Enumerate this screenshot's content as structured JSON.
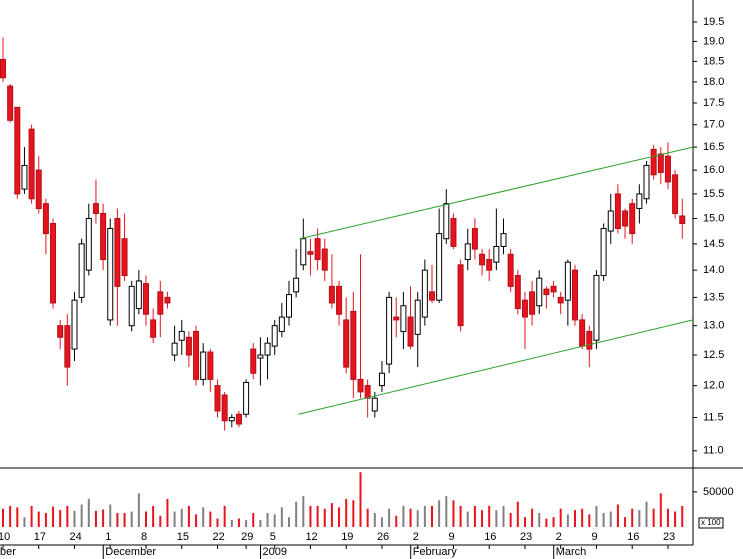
{
  "chart_data": {
    "type": "candlestick",
    "categories": [
      "10",
      null,
      null,
      null,
      null,
      "17",
      null,
      null,
      null,
      null,
      "24",
      null,
      null,
      null,
      null,
      "1",
      null,
      null,
      null,
      null,
      "8",
      null,
      null,
      null,
      null,
      "15",
      null,
      null,
      null,
      null,
      "22",
      null,
      null,
      null,
      "29",
      null,
      null,
      null,
      "5",
      null,
      null,
      null,
      null,
      "12",
      null,
      null,
      null,
      null,
      "19",
      null,
      null,
      null,
      null,
      "26",
      null,
      null,
      null,
      null,
      "2",
      null,
      null,
      null,
      null,
      "9",
      null,
      null,
      null,
      null,
      "16",
      null,
      null,
      null,
      null,
      "23",
      null,
      null,
      null,
      null,
      "2",
      null,
      null,
      null,
      null,
      "9",
      null,
      null,
      null,
      null,
      "16",
      null,
      null,
      null,
      null,
      "23",
      null,
      null
    ],
    "month_labels": [
      "ber",
      null,
      null,
      null,
      null,
      null,
      null,
      null,
      null,
      null,
      null,
      null,
      null,
      null,
      null,
      "December",
      null,
      null,
      null,
      null,
      null,
      null,
      null,
      null,
      null,
      null,
      null,
      null,
      null,
      null,
      null,
      null,
      null,
      null,
      null,
      null,
      null,
      "2009",
      null,
      null,
      null,
      null,
      null,
      null,
      null,
      null,
      null,
      null,
      null,
      null,
      null,
      null,
      null,
      null,
      null,
      null,
      null,
      null,
      "February",
      null,
      null,
      null,
      null,
      null,
      null,
      null,
      null,
      null,
      null,
      null,
      null,
      null,
      null,
      null,
      null,
      null,
      null,
      null,
      "March",
      null,
      null,
      null,
      null,
      null,
      null,
      null,
      null,
      null,
      null,
      null,
      null,
      null,
      null,
      null,
      null,
      null
    ],
    "open": [
      18.55,
      17.9,
      17.4,
      15.6,
      16.9,
      16.0,
      15.3,
      14.9,
      13.0,
      13.0,
      12.6,
      13.5,
      14.0,
      15.3,
      15.1,
      13.1,
      15.0,
      14.6,
      13.0,
      13.3,
      13.75,
      13.1,
      13.6,
      13.5,
      12.5,
      12.75,
      12.8,
      12.9,
      12.1,
      12.55,
      12.0,
      11.85,
      11.45,
      11.55,
      11.55,
      12.6,
      12.45,
      12.5,
      12.65,
      12.9,
      13.15,
      13.6,
      14.1,
      14.35,
      14.6,
      14.4,
      13.7,
      13.7,
      13.1,
      13.25,
      12.1,
      12.0,
      11.6,
      12.0,
      12.35,
      13.15,
      12.9,
      13.15,
      12.85,
      13.15,
      13.6,
      13.45,
      14.6,
      15.0,
      14.1,
      14.2,
      14.8,
      14.3,
      14.2,
      14.15,
      14.45,
      14.3,
      13.9,
      13.45,
      13.6,
      13.35,
      13.65,
      13.7,
      13.5,
      13.45,
      14.0,
      13.1,
      12.9,
      12.75,
      13.9,
      14.75,
      15.5,
      15.15,
      15.3,
      15.2,
      15.4,
      16.45,
      16.35,
      16.3,
      15.9,
      15.05
    ],
    "high": [
      19.1,
      17.95,
      17.4,
      16.5,
      17.0,
      16.3,
      15.4,
      15.0,
      13.1,
      13.2,
      13.6,
      14.6,
      15.3,
      15.8,
      15.3,
      15.0,
      15.2,
      15.1,
      13.8,
      14.0,
      13.9,
      13.3,
      13.8,
      13.6,
      13.0,
      13.1,
      12.9,
      13.0,
      12.7,
      12.6,
      12.1,
      11.9,
      11.55,
      11.6,
      12.1,
      12.7,
      12.8,
      12.8,
      13.1,
      13.4,
      13.8,
      14.4,
      15.0,
      14.6,
      14.8,
      14.6,
      14.3,
      13.8,
      13.5,
      13.6,
      14.3,
      12.1,
      11.9,
      12.4,
      13.6,
      13.5,
      13.6,
      13.7,
      13.6,
      14.2,
      14.1,
      15.2,
      15.6,
      15.1,
      14.2,
      14.8,
      15.0,
      14.4,
      14.4,
      15.2,
      15.0,
      14.4,
      14.0,
      13.6,
      13.8,
      14.0,
      13.7,
      13.8,
      13.6,
      14.2,
      14.1,
      13.2,
      13.0,
      14.0,
      14.9,
      15.5,
      15.7,
      15.2,
      15.4,
      15.7,
      16.2,
      16.55,
      16.5,
      16.6,
      16.0,
      15.4
    ],
    "low": [
      18.0,
      17.05,
      15.4,
      15.5,
      15.3,
      15.1,
      14.3,
      13.3,
      12.6,
      12.0,
      12.4,
      13.4,
      13.9,
      14.9,
      14.0,
      13.0,
      13.0,
      13.8,
      12.9,
      13.2,
      13.0,
      12.7,
      12.8,
      13.3,
      12.4,
      12.5,
      12.3,
      12.0,
      12.0,
      11.9,
      11.5,
      11.3,
      11.35,
      11.35,
      11.5,
      12.1,
      12.0,
      12.1,
      12.5,
      12.8,
      13.0,
      13.5,
      14.0,
      13.9,
      14.0,
      13.8,
      13.3,
      13.0,
      12.2,
      11.8,
      11.8,
      11.5,
      11.5,
      11.9,
      12.2,
      12.8,
      12.6,
      12.6,
      12.3,
      13.0,
      13.4,
      13.4,
      14.5,
      14.4,
      12.9,
      14.0,
      14.2,
      13.9,
      13.8,
      14.0,
      14.3,
      13.6,
      13.2,
      12.6,
      13.0,
      13.2,
      13.3,
      13.5,
      13.2,
      13.0,
      13.0,
      12.6,
      12.3,
      12.6,
      13.8,
      14.5,
      14.7,
      14.6,
      14.5,
      14.9,
      15.3,
      15.8,
      15.7,
      15.6,
      15.0,
      14.6
    ],
    "close": [
      18.1,
      17.1,
      15.5,
      16.1,
      15.4,
      15.2,
      14.7,
      13.4,
      12.8,
      12.3,
      13.45,
      14.5,
      15.0,
      15.1,
      14.2,
      14.8,
      13.7,
      13.9,
      13.7,
      13.8,
      13.2,
      12.8,
      13.2,
      13.4,
      12.7,
      12.9,
      12.5,
      12.1,
      12.55,
      12.1,
      11.6,
      11.45,
      11.5,
      11.4,
      12.05,
      12.2,
      12.5,
      12.7,
      13.0,
      13.15,
      13.55,
      13.85,
      14.6,
      14.3,
      14.2,
      14.0,
      13.4,
      13.2,
      12.3,
      12.1,
      11.9,
      11.8,
      11.8,
      12.2,
      13.5,
      13.1,
      13.35,
      12.65,
      13.45,
      14.0,
      13.45,
      14.7,
      15.3,
      14.45,
      13.0,
      14.5,
      14.4,
      14.1,
      14.0,
      14.45,
      14.7,
      13.7,
      13.3,
      13.15,
      13.2,
      13.85,
      13.55,
      13.6,
      13.4,
      14.15,
      13.1,
      12.65,
      12.6,
      13.9,
      14.8,
      15.15,
      14.8,
      14.85,
      14.7,
      15.5,
      16.1,
      15.9,
      15.95,
      15.75,
      15.1,
      14.9
    ],
    "up_color": "#ffffff",
    "down_color": "#e8131b",
    "ylim": [
      10.75,
      20.08
    ],
    "log_scale": true,
    "yticks": [
      {
        "value": 11,
        "label": "11.0"
      },
      {
        "value": 11.5,
        "label": "11.5"
      },
      {
        "value": 12,
        "label": "12.0"
      },
      {
        "value": 12.5,
        "label": "12.5"
      },
      {
        "value": 13,
        "label": "13.0"
      },
      {
        "value": 13.5,
        "label": "13.5"
      },
      {
        "value": 14,
        "label": "14.0"
      },
      {
        "value": 14.5,
        "label": "14.5"
      },
      {
        "value": 15,
        "label": "15.0"
      },
      {
        "value": 15.5,
        "label": "15.5"
      },
      {
        "value": 16,
        "label": "16.0"
      },
      {
        "value": 16.5,
        "label": "16.5"
      },
      {
        "value": 17,
        "label": "17.0"
      },
      {
        "value": 17.5,
        "label": "17.5"
      },
      {
        "value": 18,
        "label": "18.0"
      },
      {
        "value": 18.5,
        "label": "18.5"
      },
      {
        "value": 19,
        "label": "19.0"
      },
      {
        "value": 19.5,
        "label": "19.5"
      }
    ],
    "trendlines": [
      {
        "x": [
          41.5,
          96.5
        ],
        "y": [
          14.6,
          16.5
        ]
      },
      {
        "x": [
          41.3,
          96.5
        ],
        "y": [
          11.55,
          13.1
        ]
      }
    ],
    "trendline_color": "#2ca02c",
    "volume": {
      "values": [
        26000,
        30000,
        28000,
        14000,
        30000,
        22000,
        20000,
        29000,
        24000,
        30000,
        23000,
        32000,
        40000,
        23000,
        25000,
        32000,
        20000,
        20000,
        22000,
        48000,
        22000,
        30000,
        16000,
        40000,
        22000,
        26000,
        30000,
        18000,
        28000,
        22000,
        12000,
        30000,
        10000,
        12000,
        10000,
        20000,
        10000,
        20000,
        18000,
        28000,
        14000,
        36000,
        44000,
        30000,
        30000,
        26000,
        34000,
        28000,
        40000,
        38000,
        78000,
        26000,
        20000,
        14000,
        26000,
        16000,
        30000,
        26000,
        24000,
        30000,
        30000,
        38000,
        44000,
        38000,
        30000,
        22000,
        30000,
        24000,
        30000,
        24000,
        30000,
        20000,
        36000,
        14000,
        26000,
        20000,
        12000,
        14000,
        26000,
        18000,
        24000,
        26000,
        18000,
        30000,
        20000,
        22000,
        32000,
        14000,
        26000,
        24000,
        36000,
        26000,
        48000,
        26000,
        22000,
        30000
      ],
      "ylim": [
        0,
        84000
      ],
      "yticks": [
        50000
      ],
      "unit_label": "x 100",
      "up_color": "#808080",
      "down_color": "#e8131b"
    }
  }
}
